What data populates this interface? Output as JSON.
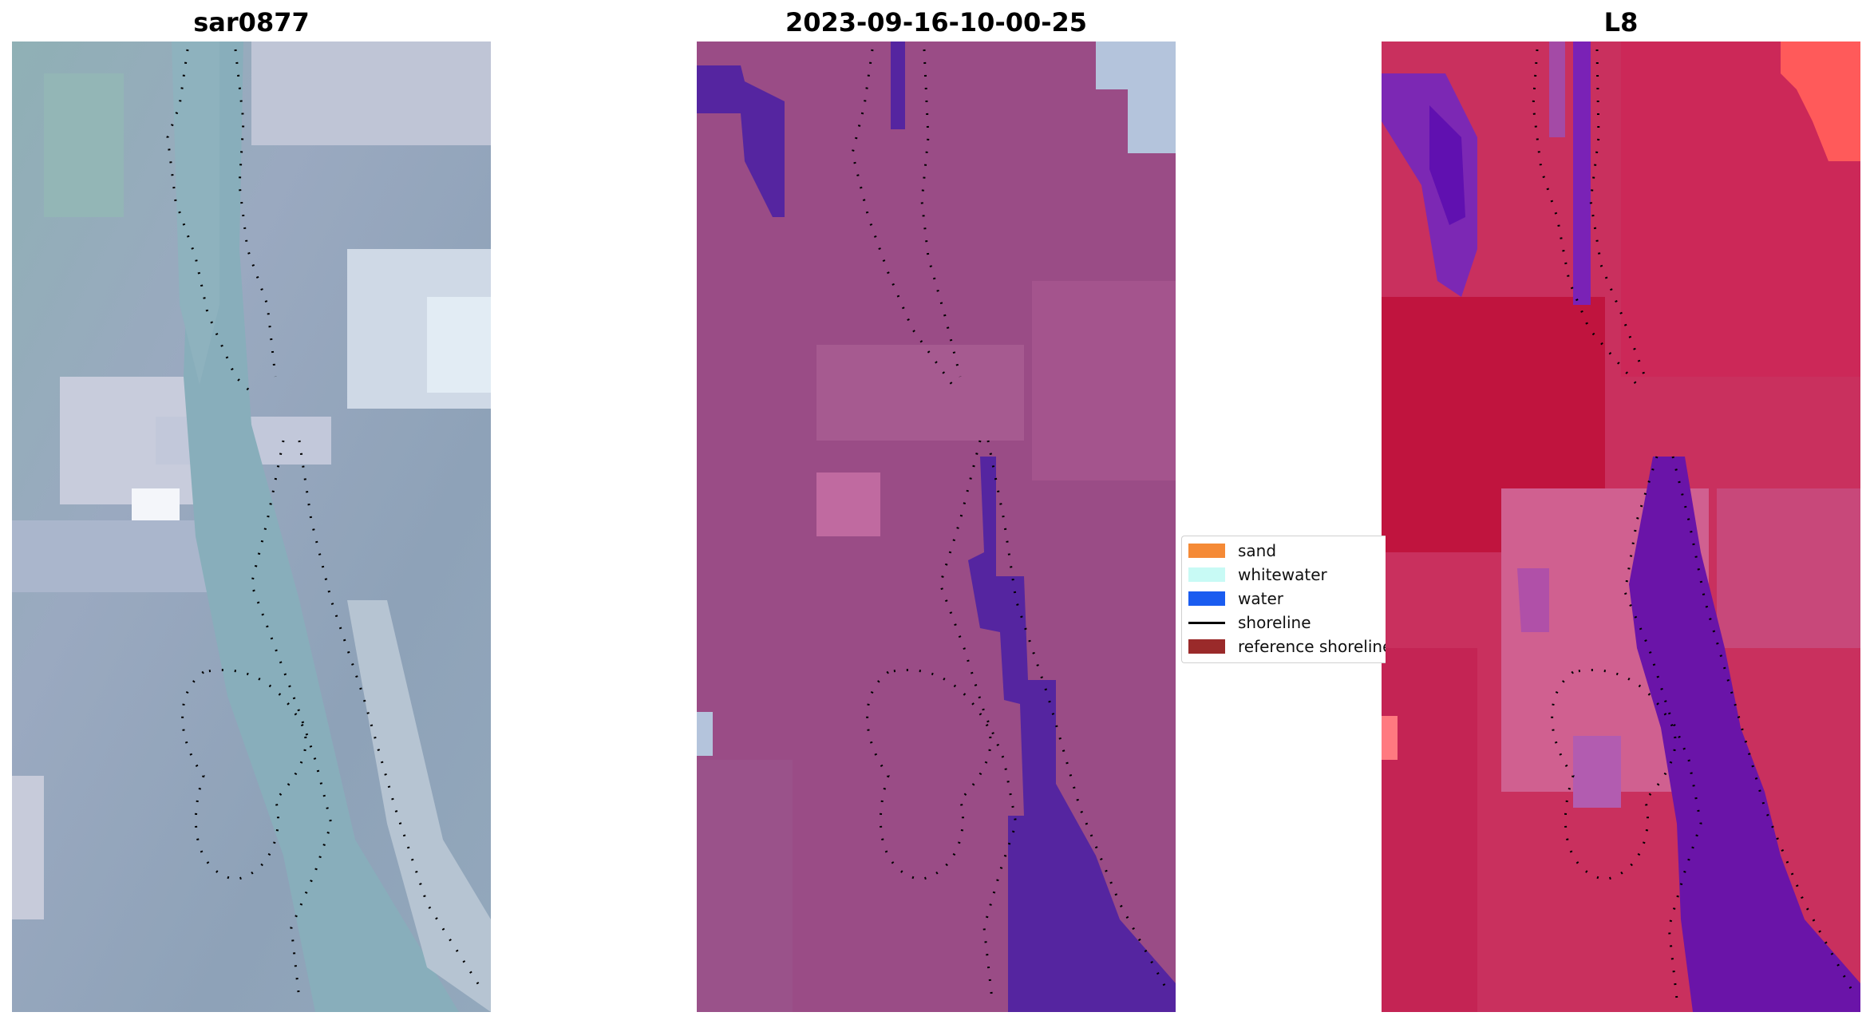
{
  "panels": [
    {
      "title": "sar0877"
    },
    {
      "title": "2023-09-16-10-00-25"
    },
    {
      "title": "L8"
    }
  ],
  "legend": {
    "items": [
      {
        "label": "sand",
        "color": "#f58a36",
        "kind": "patch"
      },
      {
        "label": "whitewater",
        "color": "#c8faf5",
        "kind": "patch"
      },
      {
        "label": "water",
        "color": "#1a5cf0",
        "kind": "patch"
      },
      {
        "label": "shoreline",
        "color": "#000000",
        "kind": "line"
      },
      {
        "label": "reference shoreline",
        "color": "#9a2a2a",
        "kind": "patch"
      }
    ]
  },
  "colors": {
    "rgb_base": "#8fa4b8",
    "rgb_water": "#8bacbc",
    "rgb_bright": "#d8dce8",
    "classified_base": "#9a4c86",
    "classified_water": "#5525a0",
    "classified_ref": "#b4c4dc",
    "mndwi_base": "#c9305e",
    "mndwi_purple": "#6a14a8",
    "mndwi_hot": "#ff5a5a"
  }
}
